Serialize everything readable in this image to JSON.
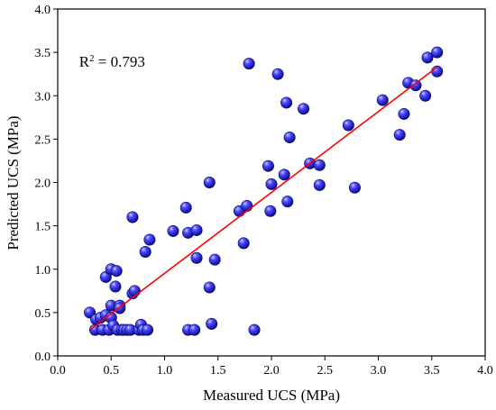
{
  "chart_data": {
    "type": "scatter",
    "xlabel": "Measured UCS (MPa)",
    "ylabel": "Predicted UCS (MPa)",
    "xlim": [
      0.0,
      4.0
    ],
    "ylim": [
      0.0,
      4.0
    ],
    "xticks": [
      "0.0",
      "0.5",
      "1.0",
      "1.5",
      "2.0",
      "2.5",
      "3.0",
      "3.5",
      "4.0"
    ],
    "yticks": [
      "0.0",
      "0.5",
      "1.0",
      "1.5",
      "2.0",
      "2.5",
      "3.0",
      "3.5",
      "4.0"
    ],
    "grid": false,
    "annotation": {
      "base": "R",
      "superscript": "2",
      "value_text": " = 0.793",
      "x": 0.2,
      "y": 3.4
    },
    "fit_line": {
      "color": "#ff0000",
      "points": [
        [
          0.3,
          0.3
        ],
        [
          3.55,
          3.33
        ]
      ]
    },
    "marker_color": "#1a1ae6",
    "points": [
      [
        0.3,
        0.5
      ],
      [
        0.35,
        0.3
      ],
      [
        0.36,
        0.42
      ],
      [
        0.4,
        0.44
      ],
      [
        0.42,
        0.3
      ],
      [
        0.45,
        0.47
      ],
      [
        0.45,
        0.91
      ],
      [
        0.48,
        0.3
      ],
      [
        0.5,
        1.0
      ],
      [
        0.5,
        0.44
      ],
      [
        0.5,
        0.58
      ],
      [
        0.52,
        0.35
      ],
      [
        0.54,
        0.8
      ],
      [
        0.55,
        0.98
      ],
      [
        0.56,
        0.3
      ],
      [
        0.58,
        0.58
      ],
      [
        0.58,
        0.55
      ],
      [
        0.6,
        0.3
      ],
      [
        0.62,
        0.3
      ],
      [
        0.65,
        0.3
      ],
      [
        0.68,
        0.3
      ],
      [
        0.7,
        0.72
      ],
      [
        0.72,
        0.75
      ],
      [
        0.7,
        1.6
      ],
      [
        0.76,
        0.3
      ],
      [
        0.78,
        0.36
      ],
      [
        0.8,
        0.3
      ],
      [
        0.82,
        1.2
      ],
      [
        0.84,
        0.3
      ],
      [
        0.86,
        1.34
      ],
      [
        1.08,
        1.44
      ],
      [
        1.2,
        1.71
      ],
      [
        1.22,
        0.3
      ],
      [
        1.22,
        1.42
      ],
      [
        1.28,
        0.3
      ],
      [
        1.3,
        1.13
      ],
      [
        1.3,
        1.45
      ],
      [
        1.42,
        2.0
      ],
      [
        1.42,
        0.79
      ],
      [
        1.44,
        0.37
      ],
      [
        1.47,
        1.11
      ],
      [
        1.7,
        1.67
      ],
      [
        1.74,
        1.3
      ],
      [
        1.77,
        1.73
      ],
      [
        1.79,
        3.37
      ],
      [
        1.84,
        0.3
      ],
      [
        1.97,
        2.19
      ],
      [
        1.99,
        1.67
      ],
      [
        2.0,
        1.98
      ],
      [
        2.06,
        3.25
      ],
      [
        2.12,
        2.09
      ],
      [
        2.14,
        2.92
      ],
      [
        2.15,
        1.78
      ],
      [
        2.17,
        2.52
      ],
      [
        2.3,
        2.85
      ],
      [
        2.36,
        2.22
      ],
      [
        2.45,
        2.2
      ],
      [
        2.45,
        1.97
      ],
      [
        2.72,
        2.66
      ],
      [
        2.78,
        1.94
      ],
      [
        3.04,
        2.95
      ],
      [
        3.2,
        2.55
      ],
      [
        3.24,
        2.79
      ],
      [
        3.28,
        3.15
      ],
      [
        3.35,
        3.12
      ],
      [
        3.44,
        3.0
      ],
      [
        3.46,
        3.44
      ],
      [
        3.55,
        3.5
      ],
      [
        3.55,
        3.28
      ]
    ]
  }
}
